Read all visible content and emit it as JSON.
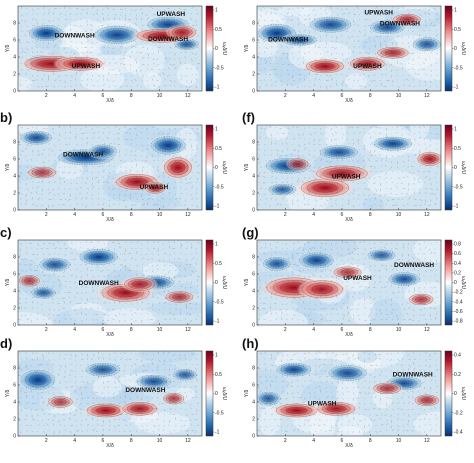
{
  "figure": {
    "panels": [
      {
        "id": "a",
        "label": "",
        "col": 0,
        "row": 0,
        "annotations": [
          {
            "text": "UPWASH",
            "x": 10.8,
            "y": 8.8
          },
          {
            "text": "DOWNWASH",
            "x": 4.0,
            "y": 6.3
          },
          {
            "text": "DOWNWASH",
            "x": 10.6,
            "y": 5.9
          },
          {
            "text": "UPWASH",
            "x": 4.8,
            "y": 2.7
          }
        ],
        "blobs": [
          [
            2.0,
            6.8,
            1.0,
            0.7,
            -1
          ],
          [
            7.0,
            6.6,
            1.3,
            0.8,
            -0.9
          ],
          [
            10.6,
            7.8,
            1.2,
            0.7,
            -0.9
          ],
          [
            11.9,
            5.5,
            0.7,
            0.5,
            -0.7
          ],
          [
            1.6,
            3.4,
            0.8,
            0.6,
            -0.7
          ],
          [
            2.4,
            3.2,
            1.6,
            0.7,
            1
          ],
          [
            4.4,
            3.2,
            1.3,
            0.6,
            1
          ],
          [
            10.2,
            6.5,
            1.5,
            0.6,
            1
          ],
          [
            11.6,
            6.9,
            0.8,
            0.6,
            0.8
          ]
        ],
        "colorbar": {
          "ticks": [
            "1",
            "0.5",
            "0",
            "-0.5",
            "-1"
          ],
          "label": "ωₓδ/U"
        }
      },
      {
        "id": "e",
        "label": "",
        "col": 1,
        "row": 0,
        "annotations": [
          {
            "text": "UPWASH",
            "x": 8.6,
            "y": 9.0
          },
          {
            "text": "DOWNWASH",
            "x": 10.1,
            "y": 7.7
          },
          {
            "text": "DOWNWASH",
            "x": 2.2,
            "y": 5.8
          },
          {
            "text": "UPWASH",
            "x": 7.8,
            "y": 2.7
          }
        ],
        "blobs": [
          [
            1.4,
            6.8,
            1.1,
            0.8,
            -1
          ],
          [
            5.2,
            7.8,
            1.2,
            0.7,
            -0.8
          ],
          [
            9.2,
            7.5,
            1.0,
            0.6,
            -0.8
          ],
          [
            12.0,
            5.5,
            0.8,
            0.6,
            -0.7
          ],
          [
            3.0,
            6.0,
            1.0,
            0.5,
            -0.7
          ],
          [
            4.8,
            2.9,
            1.1,
            0.6,
            1
          ],
          [
            7.8,
            3.2,
            1.0,
            0.6,
            0.9
          ],
          [
            9.6,
            4.5,
            0.9,
            0.5,
            0.7
          ],
          [
            10.6,
            8.4,
            0.8,
            0.5,
            0.7
          ]
        ],
        "colorbar": {
          "ticks": [
            "1",
            "0.5",
            "0",
            "-0.5",
            "-1"
          ],
          "label": "ωₓδ/U"
        }
      },
      {
        "id": "b",
        "label": "b)",
        "col": 0,
        "row": 1,
        "annotations": [
          {
            "text": "DOWNWASH",
            "x": 4.6,
            "y": 6.3
          },
          {
            "text": "UPWASH",
            "x": 9.6,
            "y": 2.5
          }
        ],
        "blobs": [
          [
            4.8,
            6.2,
            1.6,
            0.7,
            -1
          ],
          [
            1.3,
            8.5,
            0.9,
            0.6,
            -0.8
          ],
          [
            10.6,
            7.6,
            1.0,
            0.8,
            -1
          ],
          [
            6.0,
            6.9,
            0.8,
            0.6,
            -0.7
          ],
          [
            8.4,
            3.3,
            1.2,
            0.7,
            1
          ],
          [
            11.3,
            5.0,
            0.8,
            0.9,
            1
          ],
          [
            9.7,
            2.6,
            0.6,
            0.5,
            0.8
          ],
          [
            1.7,
            4.4,
            0.8,
            0.5,
            0.5
          ]
        ],
        "colorbar": {
          "ticks": [
            "1",
            "0.5",
            "0",
            "-0.5",
            "-1"
          ],
          "label": "ωₓδ/U"
        }
      },
      {
        "id": "f",
        "label": "(f)",
        "col": 1,
        "row": 1,
        "annotations": [
          {
            "text": "UPWASH",
            "x": 6.3,
            "y": 3.7
          }
        ],
        "blobs": [
          [
            2.2,
            5.2,
            1.3,
            0.7,
            -1
          ],
          [
            5.8,
            6.8,
            1.1,
            0.6,
            -0.8
          ],
          [
            9.6,
            7.8,
            1.1,
            0.6,
            -0.9
          ],
          [
            1.8,
            2.4,
            0.8,
            0.5,
            -0.6
          ],
          [
            4.8,
            2.6,
            1.4,
            0.8,
            1
          ],
          [
            6.0,
            4.3,
            1.5,
            0.7,
            0.9
          ],
          [
            12.2,
            6.0,
            0.7,
            0.6,
            0.9
          ],
          [
            2.9,
            5.4,
            0.6,
            0.5,
            0.5
          ]
        ],
        "colorbar": {
          "ticks": [
            "1",
            "0.5",
            "0",
            "-0.5",
            "-1"
          ],
          "label": "ωₓδ/U"
        }
      },
      {
        "id": "c",
        "label": "c)",
        "col": 0,
        "row": 2,
        "annotations": [
          {
            "text": "DOWNWASH",
            "x": 5.7,
            "y": 4.7
          }
        ],
        "blobs": [
          [
            5.7,
            8.0,
            1.1,
            0.7,
            -1
          ],
          [
            2.6,
            7.1,
            0.9,
            0.6,
            -0.7
          ],
          [
            9.8,
            5.0,
            1.0,
            0.6,
            -0.8
          ],
          [
            1.8,
            3.8,
            0.7,
            0.5,
            -0.6
          ],
          [
            7.6,
            3.8,
            1.4,
            0.8,
            1
          ],
          [
            8.6,
            4.8,
            0.9,
            0.6,
            0.8
          ],
          [
            11.4,
            3.3,
            0.8,
            0.5,
            0.6
          ],
          [
            0.8,
            5.2,
            0.6,
            0.5,
            0.5
          ]
        ],
        "colorbar": {
          "ticks": [
            "1",
            "0.5",
            "0",
            "-0.5",
            "-1"
          ],
          "label": "ωₓδ/U"
        }
      },
      {
        "id": "g",
        "label": "(g)",
        "col": 1,
        "row": 2,
        "annotations": [
          {
            "text": "UPWASH",
            "x": 7.1,
            "y": 5.3
          },
          {
            "text": "DOWNWASH",
            "x": 11.1,
            "y": 6.8
          }
        ],
        "blobs": [
          [
            4.2,
            7.6,
            1.0,
            0.7,
            -0.9
          ],
          [
            10.4,
            5.4,
            0.9,
            0.6,
            -0.8
          ],
          [
            1.4,
            7.2,
            0.8,
            0.6,
            -0.7
          ],
          [
            8.8,
            8.2,
            0.8,
            0.5,
            -0.6
          ],
          [
            2.6,
            4.4,
            1.6,
            0.9,
            1
          ],
          [
            4.6,
            4.2,
            1.2,
            0.8,
            0.9
          ],
          [
            6.4,
            6.2,
            0.8,
            0.5,
            0.6
          ],
          [
            11.6,
            3.0,
            0.7,
            0.5,
            0.6
          ]
        ],
        "colorbar": {
          "ticks": [
            "0.8",
            "0.6",
            "0.4",
            "0.2",
            "0",
            "-0.2",
            "-0.4",
            "-0.6",
            "-0.8"
          ],
          "label": "ωₓδ/U"
        }
      },
      {
        "id": "d",
        "label": "d)",
        "col": 0,
        "row": 3,
        "annotations": [
          {
            "text": "DOWNWASH",
            "x": 9.0,
            "y": 5.2
          }
        ],
        "blobs": [
          [
            1.4,
            6.6,
            1.0,
            0.9,
            -1
          ],
          [
            6.0,
            7.8,
            1.0,
            0.6,
            -0.7
          ],
          [
            9.6,
            6.4,
            1.0,
            0.6,
            -0.8
          ],
          [
            11.8,
            7.2,
            0.7,
            0.5,
            -0.6
          ],
          [
            6.2,
            3.0,
            1.1,
            0.6,
            1
          ],
          [
            8.6,
            3.2,
            1.0,
            0.6,
            0.9
          ],
          [
            3.0,
            4.0,
            0.7,
            0.5,
            0.5
          ],
          [
            11.0,
            4.4,
            0.6,
            0.5,
            0.5
          ]
        ],
        "colorbar": {
          "ticks": [
            "1",
            "0.5",
            "0",
            "-0.5",
            "-1"
          ],
          "label": "ωₓδ/U"
        }
      },
      {
        "id": "h",
        "label": "(h)",
        "col": 1,
        "row": 3,
        "annotations": [
          {
            "text": "DOWNWASH",
            "x": 11.0,
            "y": 7.0
          },
          {
            "text": "UPWASH",
            "x": 4.6,
            "y": 3.6
          }
        ],
        "blobs": [
          [
            2.6,
            7.8,
            1.0,
            0.6,
            -0.9
          ],
          [
            6.4,
            7.4,
            1.1,
            0.7,
            -0.8
          ],
          [
            10.4,
            6.2,
            1.0,
            0.6,
            -0.8
          ],
          [
            0.8,
            4.4,
            0.7,
            0.6,
            -0.6
          ],
          [
            2.8,
            3.0,
            1.2,
            0.6,
            1
          ],
          [
            5.6,
            3.2,
            1.1,
            0.6,
            0.9
          ],
          [
            9.2,
            5.6,
            0.8,
            0.5,
            0.6
          ],
          [
            12.0,
            4.2,
            0.7,
            0.5,
            0.6
          ]
        ],
        "colorbar": {
          "ticks": [
            "0.4",
            "0.2",
            "0",
            "-0.2",
            "-0.4"
          ],
          "label": "ωₓδ/U"
        }
      }
    ],
    "axes": {
      "xlabel": "X/δ",
      "ylabel": "Y/δ",
      "xticks": [
        2,
        4,
        6,
        8,
        10,
        12
      ],
      "yticks": [
        0,
        2,
        4,
        6,
        8
      ],
      "xlim": [
        0,
        13
      ],
      "ylim": [
        0,
        10
      ]
    },
    "colors": {
      "positive": "#b2182b",
      "negative": "#2166ac",
      "neutral": "#f4f8fb",
      "vector": "#444444"
    }
  }
}
